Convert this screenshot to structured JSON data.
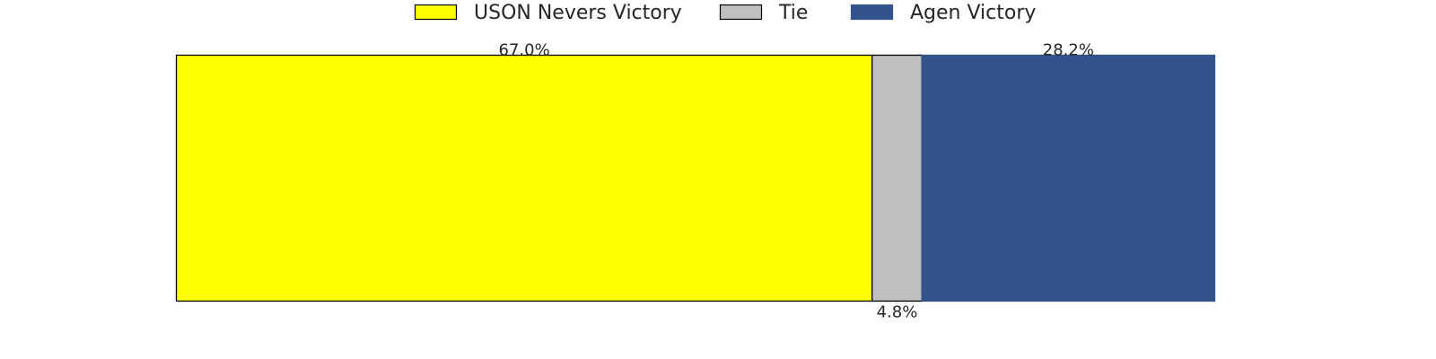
{
  "chart_data": {
    "type": "bar",
    "orientation": "horizontal",
    "stacked": true,
    "grid": false,
    "legend_position": "top-center",
    "xlim": [
      0,
      100
    ],
    "series": [
      {
        "name": "USON Nevers Victory",
        "value": 67.0,
        "label": "67.0%",
        "color": "#ffff00",
        "edge": "#000000",
        "label_position": "top"
      },
      {
        "name": "Tie",
        "value": 4.8,
        "label": "4.8%",
        "color": "#bfbfbf",
        "edge": "#000000",
        "label_position": "bottom"
      },
      {
        "name": "Agen Victory",
        "value": 28.2,
        "label": "28.2%",
        "color": "#32538c",
        "edge": "#32538c",
        "label_position": "top"
      }
    ]
  }
}
